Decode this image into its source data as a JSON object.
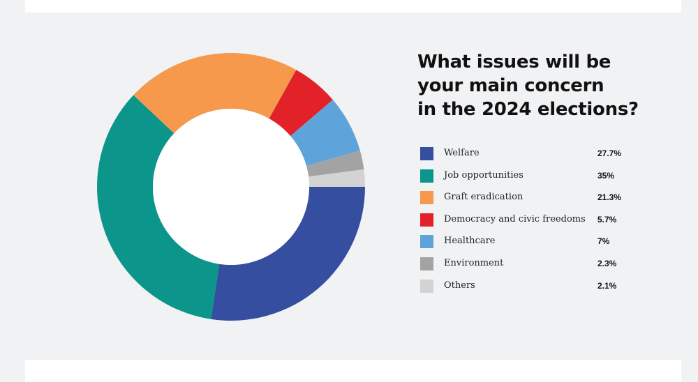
{
  "chart_data": {
    "type": "pie",
    "title_lines": [
      "What issues will be",
      "your main concern",
      "in the 2024 elections?"
    ],
    "categories": [
      "Welfare",
      "Job opportunities",
      "Graft eradication",
      "Democracy and civic freedoms",
      "Healthcare",
      "Environment",
      "Others"
    ],
    "values": [
      27.7,
      35,
      21.3,
      5.7,
      7,
      2.3,
      2.1
    ],
    "value_labels": [
      "27.7%",
      "35%",
      "21.3%",
      "5.7%",
      "7%",
      "2.3%",
      "2.1%"
    ],
    "colors": [
      "#354ea0",
      "#0c958b",
      "#f6994d",
      "#e22128",
      "#5ea3d9",
      "#a3a3a3",
      "#d3d3d3"
    ],
    "legend_position": "right",
    "donut": true
  }
}
